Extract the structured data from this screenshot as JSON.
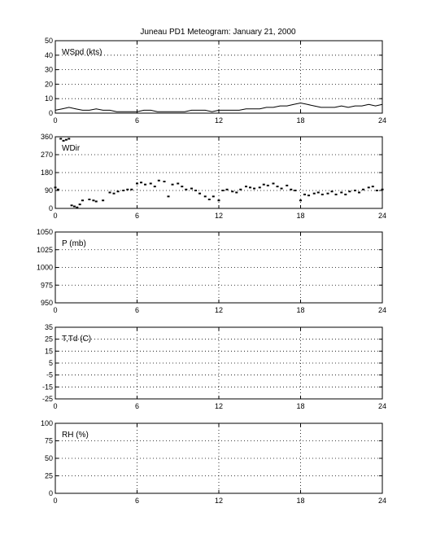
{
  "title": "Juneau PD1 Meteogram:   January 21, 2000",
  "chart_data": [
    {
      "type": "line",
      "ylabel": "WSpd (kts)",
      "xlim": [
        0,
        24
      ],
      "ylim": [
        0,
        50
      ],
      "xticks": [
        "0",
        "6",
        "12",
        "18",
        "24"
      ],
      "yticks": [
        "0",
        "10",
        "20",
        "30",
        "40",
        "50"
      ],
      "grid": true,
      "series": [
        {
          "x": [
            0,
            0.5,
            1,
            1.5,
            2,
            2.5,
            3,
            3.5,
            4,
            4.5,
            5,
            5.5,
            6,
            6.5,
            7,
            7.5,
            8,
            8.5,
            9,
            9.5,
            10,
            10.5,
            11,
            11.5,
            12,
            12.5,
            13,
            13.5,
            14,
            14.5,
            15,
            15.5,
            16,
            16.5,
            17,
            17.5,
            18,
            18.5,
            19,
            19.5,
            20,
            20.5,
            21,
            21.5,
            22,
            22.5,
            23,
            23.5,
            24
          ],
          "values": [
            2,
            3,
            4,
            3,
            2,
            2,
            3,
            2,
            2,
            1,
            1,
            1,
            1,
            2,
            2,
            1,
            1,
            1,
            1,
            1,
            2,
            2,
            2,
            1,
            2,
            2,
            2,
            2,
            3,
            3,
            3,
            4,
            4,
            5,
            5,
            6,
            7,
            6,
            5,
            4,
            4,
            4,
            5,
            4,
            5,
            5,
            6,
            5,
            6
          ]
        }
      ]
    },
    {
      "type": "scatter",
      "ylabel": "WDir",
      "xlim": [
        0,
        24
      ],
      "ylim": [
        0,
        360
      ],
      "xticks": [
        "0",
        "6",
        "12",
        "18",
        "24"
      ],
      "yticks": [
        "0",
        "90",
        "180",
        "270",
        "360"
      ],
      "grid": true,
      "series": [
        {
          "x": [
            0,
            0.2,
            0.4,
            0.6,
            0.8,
            1.0,
            1.2,
            1.4,
            1.6,
            1.8,
            2.0,
            2.5,
            2.8,
            3.0,
            3.5,
            4.0,
            4.3,
            4.6,
            5.0,
            5.3,
            5.6,
            6.0,
            6.3,
            6.6,
            7.0,
            7.3,
            7.6,
            8.0,
            8.3,
            8.6,
            9.0,
            9.3,
            9.6,
            10.0,
            10.3,
            10.6,
            11.0,
            11.3,
            11.6,
            12.0,
            12.3,
            12.6,
            13.0,
            13.3,
            13.6,
            14.0,
            14.3,
            14.6,
            15.0,
            15.3,
            15.6,
            16.0,
            16.3,
            16.6,
            17.0,
            17.3,
            17.6,
            18.0,
            18.3,
            18.6,
            19.0,
            19.3,
            19.6,
            20.0,
            20.3,
            20.6,
            21.0,
            21.3,
            21.6,
            22.0,
            22.3,
            22.6,
            23.0,
            23.3,
            23.6,
            24.0
          ],
          "values": [
            105,
            95,
            350,
            340,
            345,
            350,
            15,
            10,
            5,
            20,
            40,
            45,
            40,
            35,
            40,
            80,
            75,
            85,
            90,
            95,
            95,
            125,
            130,
            120,
            125,
            110,
            140,
            135,
            60,
            120,
            125,
            110,
            95,
            100,
            90,
            75,
            60,
            45,
            60,
            40,
            90,
            95,
            85,
            80,
            95,
            110,
            105,
            100,
            105,
            120,
            115,
            125,
            110,
            100,
            115,
            95,
            90,
            40,
            70,
            65,
            75,
            80,
            70,
            75,
            85,
            70,
            80,
            70,
            85,
            90,
            80,
            95,
            105,
            110,
            90,
            95
          ]
        }
      ]
    },
    {
      "type": "line",
      "ylabel": "P (mb)",
      "xlim": [
        0,
        24
      ],
      "ylim": [
        950,
        1050
      ],
      "xticks": [
        "0",
        "6",
        "12",
        "18",
        "24"
      ],
      "yticks": [
        "950",
        "975",
        "1000",
        "1025",
        "1050"
      ],
      "grid": true,
      "series": []
    },
    {
      "type": "line",
      "ylabel": "T,Td (C)",
      "xlim": [
        0,
        24
      ],
      "ylim": [
        -25,
        35
      ],
      "xticks": [
        "0",
        "6",
        "12",
        "18",
        "24"
      ],
      "yticks": [
        "-25",
        "-15",
        "-5",
        "5",
        "15",
        "25",
        "35"
      ],
      "grid": true,
      "series": []
    },
    {
      "type": "line",
      "ylabel": "RH (%)",
      "xlim": [
        0,
        24
      ],
      "ylim": [
        0,
        100
      ],
      "xticks": [
        "0",
        "6",
        "12",
        "18",
        "24"
      ],
      "yticks": [
        "0",
        "25",
        "50",
        "75",
        "100"
      ],
      "grid": true,
      "series": []
    }
  ]
}
